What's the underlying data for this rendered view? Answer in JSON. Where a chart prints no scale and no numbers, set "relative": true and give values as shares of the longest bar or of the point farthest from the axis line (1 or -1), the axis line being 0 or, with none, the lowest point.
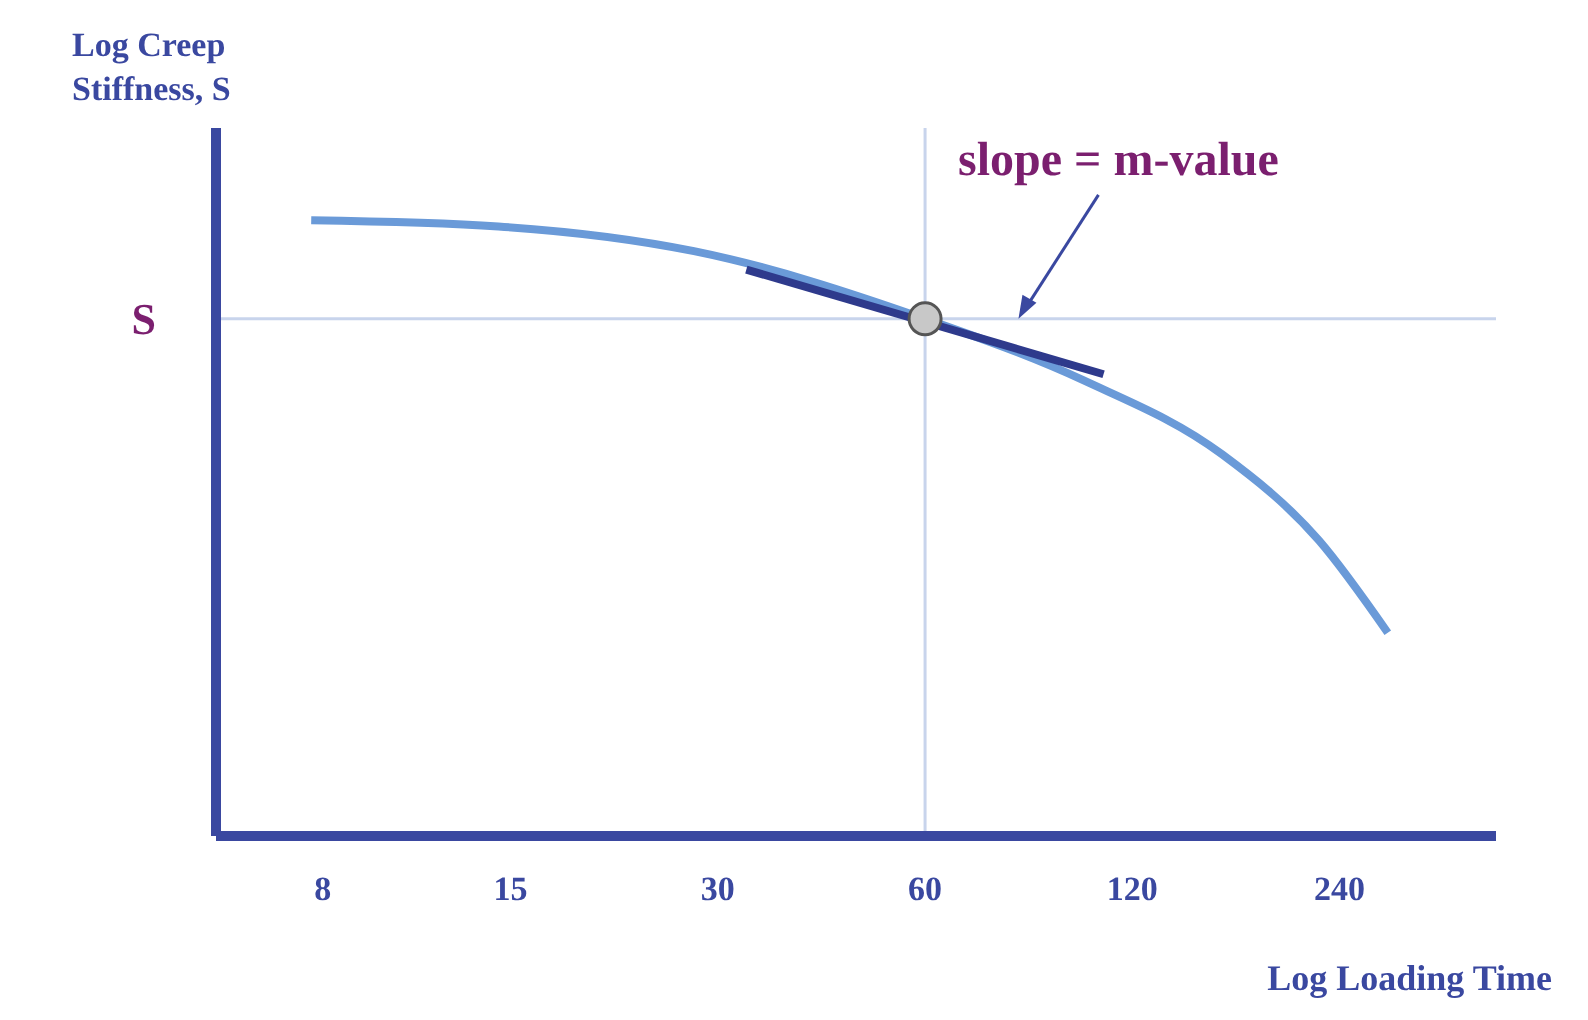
{
  "chart_data": {
    "type": "line",
    "xlabel": "Log Loading Time",
    "ylabel": "Log Creep Stiffness, S",
    "relative": true,
    "log": "x",
    "xlim": [
      5.6,
      405
    ],
    "xticks": [
      8,
      15,
      30,
      60,
      120,
      240
    ],
    "series": [
      {
        "color": "#6a9ad8",
        "x": [
          7.7,
          14.4,
          27.7,
          60,
          102,
          162,
          224,
          282
        ],
        "values": [
          1,
          0.99,
          0.95,
          0.84,
          0.74,
          0.62,
          0.48,
          0.33
        ]
      },
      {
        "color": "#2e3a8c",
        "x": [
          33,
          109
        ],
        "values": [
          0.92,
          0.75
        ]
      },
      {
        "type": "scatter",
        "color": "#c8c8c8",
        "x": [
          60
        ],
        "values": [
          0.84
        ]
      }
    ],
    "ref_lines": [
      {
        "axis": "x",
        "value": 60,
        "color": "#c8d4ec"
      },
      {
        "axis": "y",
        "value": 0.84,
        "label": "S",
        "color": "#c8d4ec"
      }
    ],
    "annotations": [
      {
        "text": "slope = m-value",
        "x": 82,
        "y": 0.84
      }
    ]
  }
}
